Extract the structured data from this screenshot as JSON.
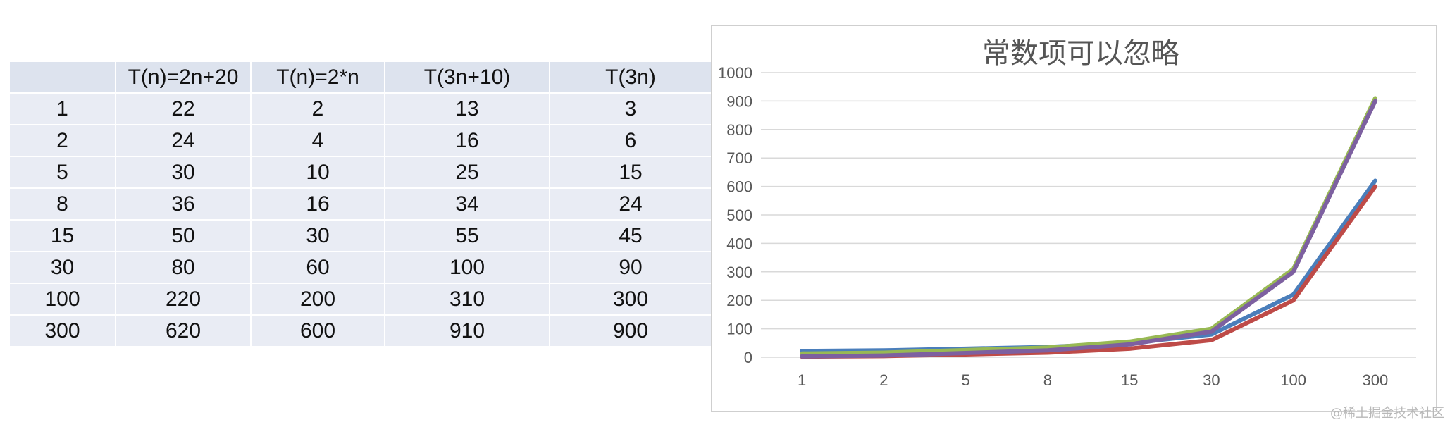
{
  "table": {
    "headers": [
      "",
      "T(n)=2n+20",
      "T(n)=2*n",
      "T(3n+10)",
      "T(3n)"
    ],
    "rows": [
      [
        "1",
        "22",
        "2",
        "13",
        "3"
      ],
      [
        "2",
        "24",
        "4",
        "16",
        "6"
      ],
      [
        "5",
        "30",
        "10",
        "25",
        "15"
      ],
      [
        "8",
        "36",
        "16",
        "34",
        "24"
      ],
      [
        "15",
        "50",
        "30",
        "55",
        "45"
      ],
      [
        "30",
        "80",
        "60",
        "100",
        "90"
      ],
      [
        "100",
        "220",
        "200",
        "310",
        "300"
      ],
      [
        "300",
        "620",
        "600",
        "910",
        "900"
      ]
    ]
  },
  "chart_data": {
    "type": "line",
    "title": "常数项可以忽略",
    "categories": [
      "1",
      "2",
      "5",
      "8",
      "15",
      "30",
      "100",
      "300"
    ],
    "ylim": [
      0,
      1000
    ],
    "yticks": [
      "0",
      "100",
      "200",
      "300",
      "400",
      "500",
      "600",
      "700",
      "800",
      "900",
      "1000"
    ],
    "grid": true,
    "legend": "none",
    "series": [
      {
        "values": [
          22,
          24,
          30,
          36,
          50,
          80,
          220,
          620
        ],
        "color": "#4a7ebb"
      },
      {
        "values": [
          2,
          4,
          10,
          16,
          30,
          60,
          200,
          600
        ],
        "color": "#be4b48"
      },
      {
        "values": [
          13,
          16,
          25,
          34,
          55,
          100,
          310,
          910
        ],
        "color": "#98b954"
      },
      {
        "values": [
          3,
          6,
          15,
          24,
          45,
          90,
          300,
          900
        ],
        "color": "#7d60a0"
      }
    ]
  },
  "watermark": "@稀土掘金技术社区"
}
